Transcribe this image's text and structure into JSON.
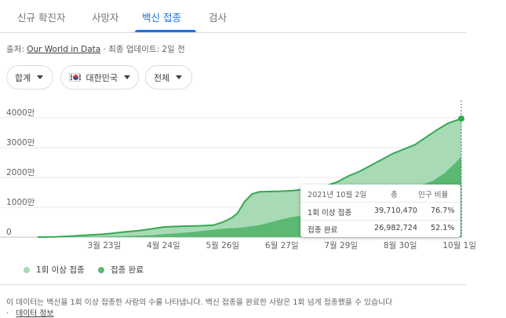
{
  "tabs": [
    {
      "label": "신규 확진자",
      "active": false
    },
    {
      "label": "사망자",
      "active": false
    },
    {
      "label": "백신 접종",
      "active": true
    },
    {
      "label": "검사",
      "active": false
    }
  ],
  "source": {
    "prefix": "출처:",
    "link": "Our World in Data",
    "separator": "·",
    "updated": "최종 업데이트: 2일 전"
  },
  "filters": {
    "total": {
      "label": "합계",
      "icon": "caret-down-icon"
    },
    "country": {
      "label": "대한민국",
      "icon": "korea-flag-icon"
    },
    "scope": {
      "label": "전체",
      "icon": "caret-down-icon"
    }
  },
  "colors": {
    "accent": "#1a73e8",
    "one_dose": "#a8dab5",
    "fully": "#5bb974",
    "line": "#34a853",
    "grid": "#e8eaed"
  },
  "chart_data": {
    "type": "area",
    "title": "",
    "xlabel": "",
    "ylabel": "",
    "ylim": [
      0,
      40000000
    ],
    "y_ticks": [
      {
        "value": 0,
        "label": "0"
      },
      {
        "value": 10000000,
        "label": "1000만"
      },
      {
        "value": 20000000,
        "label": "2000만"
      },
      {
        "value": 30000000,
        "label": "3000만"
      },
      {
        "value": 40000000,
        "label": "4000만"
      }
    ],
    "x_ticks": [
      "3월 23일",
      "4월 24일",
      "5월 26일",
      "6월 27일",
      "7월 29일",
      "8월 30일",
      "10월 1일"
    ],
    "x_tick_days": [
      36,
      68,
      100,
      132,
      164,
      196,
      228
    ],
    "x_start_day": 0,
    "x_end_day": 229,
    "x_label_note": "",
    "series": [
      {
        "name": "1회 이상 접종",
        "color": "#a8dab5",
        "points": [
          [
            0,
            0
          ],
          [
            10,
            100000
          ],
          [
            20,
            400000
          ],
          [
            30,
            800000
          ],
          [
            36,
            1000000
          ],
          [
            45,
            1600000
          ],
          [
            55,
            2200000
          ],
          [
            62,
            2800000
          ],
          [
            68,
            3400000
          ],
          [
            75,
            3600000
          ],
          [
            80,
            3700000
          ],
          [
            88,
            3800000
          ],
          [
            95,
            4000000
          ],
          [
            100,
            5000000
          ],
          [
            105,
            6500000
          ],
          [
            108,
            8000000
          ],
          [
            112,
            12000000
          ],
          [
            116,
            14500000
          ],
          [
            120,
            15200000
          ],
          [
            126,
            15300000
          ],
          [
            132,
            15400000
          ],
          [
            138,
            15600000
          ],
          [
            144,
            16000000
          ],
          [
            150,
            16500000
          ],
          [
            156,
            17200000
          ],
          [
            162,
            18500000
          ],
          [
            168,
            20500000
          ],
          [
            174,
            22000000
          ],
          [
            180,
            24000000
          ],
          [
            186,
            26000000
          ],
          [
            192,
            28000000
          ],
          [
            198,
            29500000
          ],
          [
            204,
            31000000
          ],
          [
            210,
            33500000
          ],
          [
            216,
            36000000
          ],
          [
            222,
            38200000
          ],
          [
            229,
            39710470
          ]
        ]
      },
      {
        "name": "접종 완료",
        "color": "#5bb974",
        "points": [
          [
            0,
            0
          ],
          [
            20,
            50000
          ],
          [
            36,
            200000
          ],
          [
            50,
            400000
          ],
          [
            60,
            600000
          ],
          [
            68,
            1000000
          ],
          [
            80,
            1500000
          ],
          [
            88,
            2000000
          ],
          [
            95,
            2500000
          ],
          [
            100,
            2800000
          ],
          [
            110,
            3200000
          ],
          [
            120,
            4000000
          ],
          [
            126,
            5000000
          ],
          [
            132,
            6000000
          ],
          [
            140,
            7000000
          ],
          [
            150,
            7500000
          ],
          [
            160,
            8500000
          ],
          [
            168,
            10000000
          ],
          [
            176,
            11500000
          ],
          [
            184,
            13000000
          ],
          [
            192,
            14500000
          ],
          [
            200,
            16000000
          ],
          [
            208,
            17500000
          ],
          [
            214,
            19000000
          ],
          [
            220,
            21500000
          ],
          [
            226,
            25000000
          ],
          [
            229,
            26982724
          ]
        ]
      }
    ],
    "legend": [
      {
        "label": "1회 이상 접종",
        "color": "#a8dab5"
      },
      {
        "label": "접종 완료",
        "color": "#5bb974"
      }
    ]
  },
  "tooltip": {
    "date": "2021년 10월 2일",
    "col_total": "총",
    "col_ratio": "인구 비율",
    "rows": [
      {
        "label": "1회 이상 접종",
        "total": "39,710,470",
        "ratio": "76.7%"
      },
      {
        "label": "접종 완료",
        "total": "26,982,724",
        "ratio": "52.1%"
      }
    ]
  },
  "footer": {
    "note": "이 데이터는 백신을 1회 이상 접종한 사람의 수를 나타냅니다. 백신 접종을 완료한 사람은 1회 넘게 접종했을 수 있습니다",
    "separator": "·",
    "link": "데이터 정보"
  }
}
